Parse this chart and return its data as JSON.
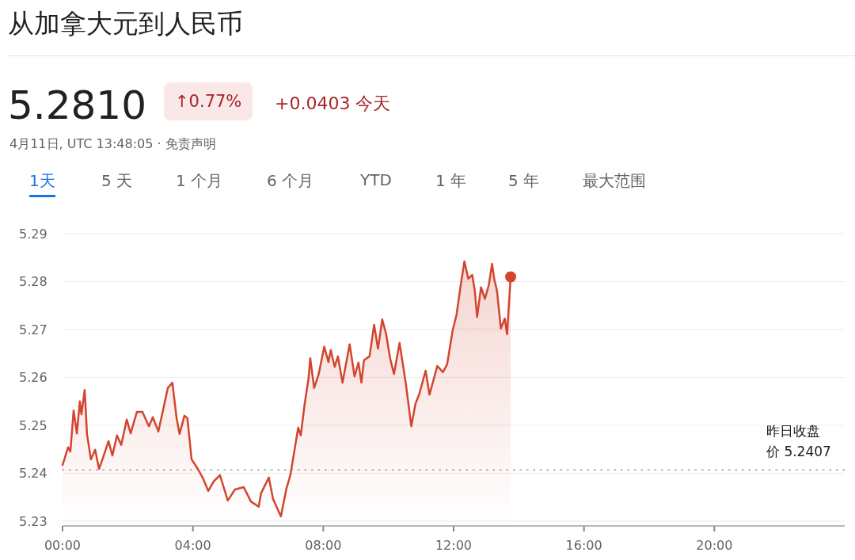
{
  "chart_data": {
    "type": "area",
    "title": "从加拿大元到人民币",
    "annotations": [
      "5.2810",
      "↑0.77%",
      "+0.0403 今天",
      "4月11日, UTC 13:48:05 · 免责声明",
      "1天",
      "5 天",
      "1 个月",
      "6 个月",
      "YTD",
      "1 年",
      "5 年",
      "最大范围"
    ],
    "series": [
      {
        "color": "#d2452f",
        "x": [
          0,
          0.07,
          0.17,
          0.24,
          0.34,
          0.44,
          0.53,
          0.58,
          0.68,
          0.75,
          0.87,
          1.0,
          1.12,
          1.24,
          1.41,
          1.53,
          1.67,
          1.8,
          1.97,
          2.09,
          2.28,
          2.45,
          2.65,
          2.77,
          2.94,
          3.11,
          3.23,
          3.37,
          3.5,
          3.59,
          3.74,
          3.83,
          3.96,
          4.15,
          4.32,
          4.47,
          4.64,
          4.83,
          5.07,
          5.29,
          5.56,
          5.78,
          6.02,
          6.09,
          6.33,
          6.46,
          6.7,
          6.87,
          6.99,
          7.11,
          7.23,
          7.31,
          7.43,
          7.55,
          7.6,
          7.72,
          7.86,
          8.03,
          8.16,
          8.23,
          8.35,
          8.45,
          8.59,
          8.81,
          8.96,
          9.08,
          9.17,
          9.25,
          9.42,
          9.56,
          9.68,
          9.81,
          9.93,
          10.05,
          10.17,
          10.34,
          10.53,
          10.7,
          10.83,
          10.95,
          11.14,
          11.26,
          11.5,
          11.67,
          11.8,
          11.97,
          12.09,
          12.21,
          12.33,
          12.45,
          12.57,
          12.65,
          12.72,
          12.84,
          12.96,
          13.08,
          13.18,
          13.25,
          13.33,
          13.45,
          13.57,
          13.64,
          13.75
        ],
        "values": [
          5.2417,
          5.2432,
          5.2454,
          5.2445,
          5.2531,
          5.2483,
          5.255,
          5.2523,
          5.2574,
          5.2482,
          5.2429,
          5.2449,
          5.2409,
          5.2432,
          5.2467,
          5.2437,
          5.2479,
          5.2459,
          5.2512,
          5.2483,
          5.2528,
          5.2528,
          5.2498,
          5.2517,
          5.2487,
          5.254,
          5.2578,
          5.2589,
          5.2515,
          5.2482,
          5.252,
          5.2515,
          5.2429,
          5.2409,
          5.2388,
          5.2363,
          5.2383,
          5.2396,
          5.2343,
          5.2366,
          5.2371,
          5.2341,
          5.233,
          5.2358,
          5.2391,
          5.2346,
          5.231,
          5.2368,
          5.2396,
          5.2445,
          5.2495,
          5.2479,
          5.2545,
          5.2599,
          5.264,
          5.2578,
          5.2607,
          5.2664,
          5.2632,
          5.2657,
          5.2622,
          5.2644,
          5.2589,
          5.2669,
          5.2602,
          5.2631,
          5.2589,
          5.2636,
          5.2644,
          5.271,
          5.266,
          5.2721,
          5.269,
          5.264,
          5.2607,
          5.2672,
          5.2589,
          5.2498,
          5.2545,
          5.2566,
          5.2614,
          5.2564,
          5.2624,
          5.2611,
          5.2627,
          5.2698,
          5.2731,
          5.2789,
          5.2842,
          5.2806,
          5.2814,
          5.2781,
          5.2726,
          5.2788,
          5.2764,
          5.2793,
          5.2837,
          5.2804,
          5.2781,
          5.2702,
          5.2723,
          5.269,
          5.281
        ]
      }
    ],
    "xlim": [
      0,
      24
    ],
    "xticks": [
      {
        "value": 0,
        "label": "00:00"
      },
      {
        "value": 4,
        "label": "04:00"
      },
      {
        "value": 8,
        "label": "08:00"
      },
      {
        "value": 12,
        "label": "12:00"
      },
      {
        "value": 16,
        "label": "16:00"
      },
      {
        "value": 20,
        "label": "20:00"
      }
    ],
    "ylim": [
      5.229,
      5.29
    ],
    "yticks": [
      5.23,
      5.24,
      5.25,
      5.26,
      5.27,
      5.28,
      5.29
    ],
    "grid": "y",
    "ref_lines": [
      {
        "axis": "y",
        "value": 5.2407,
        "label": "昨日收盘价 5.2407",
        "color": "#9a9a9a",
        "line_style": "dotted"
      }
    ]
  }
}
